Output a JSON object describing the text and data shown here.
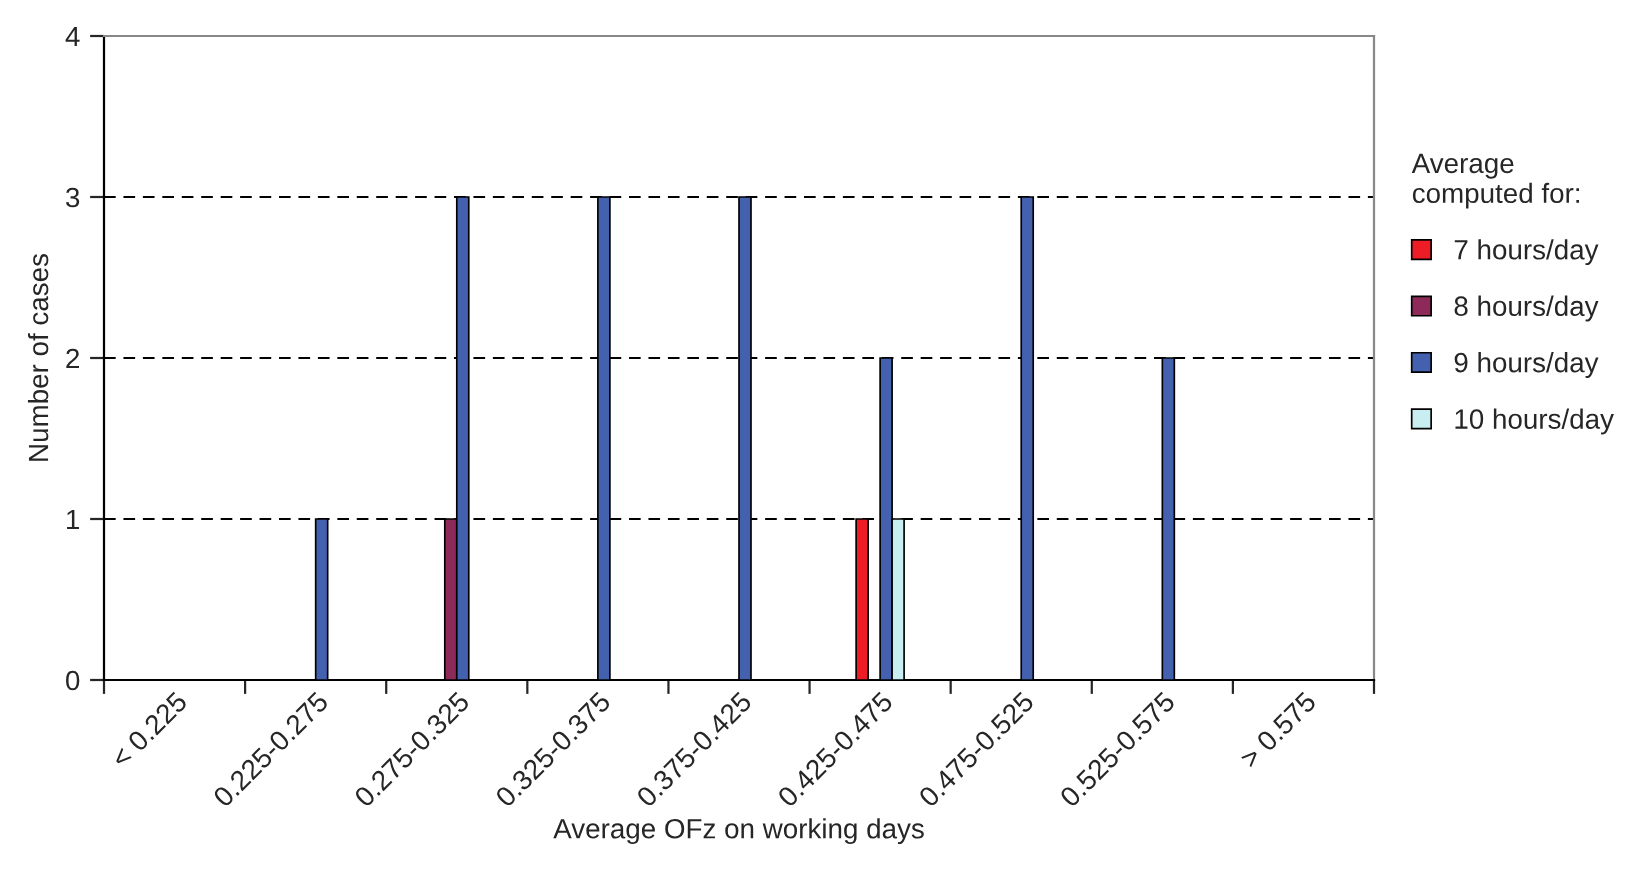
{
  "chart_data": {
    "type": "bar",
    "xlabel": "Average OFz on working days",
    "ylabel": "Number of cases",
    "legend_title": "Average\ncomputed for:",
    "categories": [
      "< 0.225",
      "0.225-0.275",
      "0.275-0.325",
      "0.325-0.375",
      "0.375-0.425",
      "0.425-0.475",
      "0.475-0.525",
      "0.525-0.575",
      "> 0.575"
    ],
    "series": [
      {
        "name": "7 hours/day",
        "color": "#ee1c24",
        "values": [
          0,
          0,
          0,
          0,
          0,
          1,
          0,
          0,
          0
        ]
      },
      {
        "name": "8 hours/day",
        "color": "#8e2a5a",
        "values": [
          0,
          0,
          1,
          0,
          0,
          0,
          0,
          0,
          0
        ]
      },
      {
        "name": "9 hours/day",
        "color": "#4461b0",
        "values": [
          0,
          1,
          3,
          3,
          3,
          2,
          3,
          2,
          0
        ]
      },
      {
        "name": "10 hours/day",
        "color": "#c8eef2",
        "values": [
          0,
          0,
          0,
          0,
          0,
          1,
          0,
          0,
          0
        ]
      }
    ],
    "ylim": [
      0,
      4
    ],
    "yticks": [
      0,
      1,
      2,
      3,
      4
    ],
    "grid": "y",
    "legend": "right"
  }
}
